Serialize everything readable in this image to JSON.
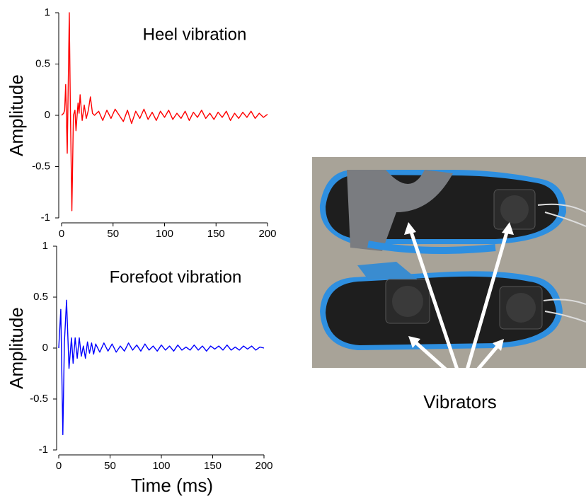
{
  "chart_data": [
    {
      "type": "line",
      "title": "Heel vibration",
      "ylabel": "Amplitude",
      "color": "#ff0000",
      "x": [
        0,
        2,
        3,
        4,
        5.5,
        7.5,
        8.5,
        10,
        11.5,
        13,
        14,
        16,
        17,
        18,
        20,
        22,
        24,
        26,
        28,
        30,
        32,
        36,
        40,
        44,
        48,
        52,
        56,
        60,
        64,
        68,
        72,
        76,
        80,
        84,
        88,
        92,
        96,
        100,
        104,
        108,
        112,
        116,
        120,
        124,
        128,
        132,
        136,
        140,
        144,
        148,
        152,
        156,
        160,
        164,
        168,
        172,
        176,
        180,
        184,
        188,
        192,
        196,
        200
      ],
      "values": [
        0,
        0.02,
        0.05,
        0.3,
        -0.37,
        1.0,
        0.1,
        -0.93,
        0.0,
        0.05,
        -0.15,
        0.12,
        0.02,
        0.2,
        -0.05,
        0.1,
        -0.03,
        0.05,
        0.18,
        0.02,
        0.0,
        0.04,
        -0.05,
        0.05,
        -0.03,
        0.06,
        0.0,
        -0.06,
        0.05,
        -0.08,
        0.04,
        -0.03,
        0.06,
        -0.04,
        0.03,
        -0.05,
        0.04,
        -0.02,
        0.05,
        -0.04,
        0.02,
        -0.03,
        0.04,
        -0.05,
        0.03,
        -0.02,
        0.05,
        -0.03,
        0.02,
        -0.04,
        0.03,
        -0.02,
        0.04,
        -0.05,
        0.02,
        -0.03,
        0.03,
        -0.02,
        0.04,
        -0.03,
        0.02,
        -0.02,
        0.01
      ],
      "xlim": [
        0,
        200
      ],
      "ylim": [
        -1,
        1
      ],
      "xticks": [
        0,
        50,
        100,
        150,
        200
      ],
      "yticks": [
        1,
        0.5,
        0,
        -0.5,
        -1
      ]
    },
    {
      "type": "line",
      "title": "Forefoot vibration",
      "ylabel": "Amplitude",
      "xlabel": "Time (ms)",
      "color": "#0000ff",
      "x": [
        0,
        2,
        4,
        5.5,
        7.6,
        10,
        12.4,
        14,
        16,
        18,
        20,
        22,
        24,
        26,
        28,
        30,
        32,
        34,
        36,
        40,
        44,
        48,
        52,
        56,
        60,
        64,
        68,
        72,
        76,
        80,
        84,
        88,
        92,
        96,
        100,
        104,
        108,
        112,
        116,
        120,
        124,
        128,
        132,
        136,
        140,
        144,
        148,
        152,
        156,
        160,
        164,
        168,
        172,
        176,
        180,
        184,
        188,
        192,
        196,
        200
      ],
      "values": [
        0,
        0.38,
        -0.85,
        0.05,
        0.47,
        -0.2,
        0.1,
        -0.15,
        0.1,
        -0.1,
        0.1,
        -0.08,
        0.02,
        -0.1,
        0.06,
        -0.05,
        0.05,
        -0.06,
        0.04,
        -0.04,
        0.05,
        -0.03,
        0.04,
        -0.04,
        0.02,
        -0.03,
        0.05,
        -0.02,
        0.03,
        -0.03,
        0.04,
        -0.02,
        0.02,
        -0.03,
        0.03,
        -0.02,
        0.02,
        -0.03,
        0.03,
        -0.02,
        0.01,
        -0.02,
        0.03,
        -0.02,
        0.02,
        -0.03,
        0.02,
        -0.01,
        0.02,
        -0.02,
        0.03,
        -0.02,
        0.01,
        -0.02,
        0.02,
        -0.01,
        0.02,
        -0.02,
        0.01,
        0.0
      ],
      "xlim": [
        0,
        200
      ],
      "ylim": [
        -1,
        1
      ],
      "xticks": [
        0,
        50,
        100,
        150,
        200
      ],
      "yticks": [
        1,
        0.5,
        0,
        -0.5,
        -1
      ]
    }
  ],
  "photo": {
    "label": "Vibrators"
  }
}
